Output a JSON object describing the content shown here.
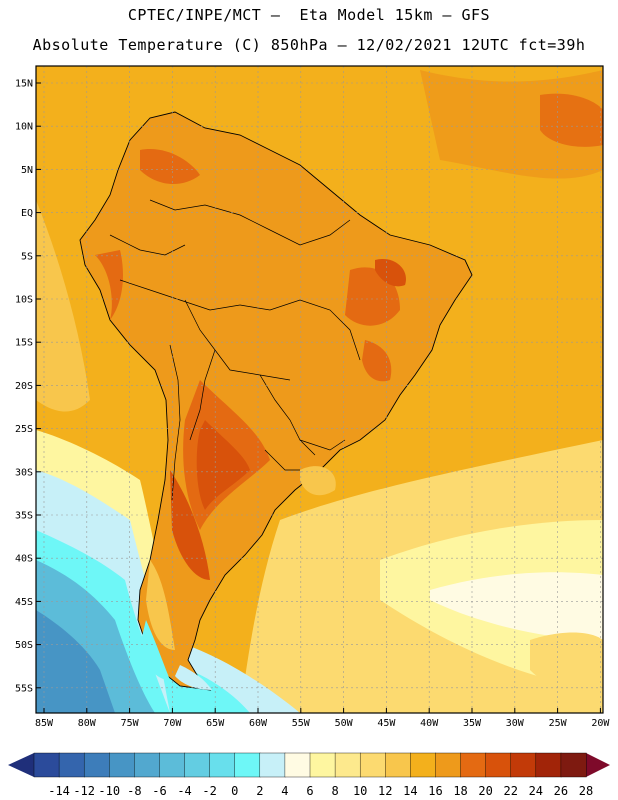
{
  "header": {
    "title_line1": "CPTEC/INPE/MCT –  Eta Model 15km – GFS",
    "title_line2": "Absolute Temperature (C) 850hPa – 12/02/2021 12UTC fct=39h"
  },
  "axes": {
    "lat_labels": [
      "15N",
      "10N",
      "5N",
      "EQ",
      "5S",
      "10S",
      "15S",
      "20S",
      "25S",
      "30S",
      "35S",
      "40S",
      "45S",
      "50S",
      "55S"
    ],
    "lon_labels": [
      "85W",
      "80W",
      "75W",
      "70W",
      "65W",
      "60W",
      "55W",
      "50W",
      "45W",
      "40W",
      "35W",
      "30W",
      "25W",
      "20W"
    ]
  },
  "colorbar": {
    "labels": [
      "-14",
      "-12",
      "-10",
      "-8",
      "-6",
      "-4",
      "-2",
      "0",
      "2",
      "4",
      "6",
      "8",
      "10",
      "12",
      "14",
      "16",
      "18",
      "20",
      "22",
      "24",
      "26",
      "28"
    ],
    "colors": [
      "#2b4b9b",
      "#3465ad",
      "#3d7dba",
      "#4795c5",
      "#52a8cf",
      "#5cbcd9",
      "#63cde2",
      "#68dfec",
      "#6ef7f7",
      "#c7f0f8",
      "#fffbe3",
      "#fef6a0",
      "#fde98d",
      "#fcda70",
      "#f8c64c",
      "#f3b01c",
      "#ee9a1b",
      "#e46a12",
      "#d8520b",
      "#c23a08",
      "#a12408",
      "#7e1a10"
    ],
    "arrow_left_color": "#1f2f7a",
    "arrow_right_color": "#7e0a2a"
  },
  "palette": {
    "ocean_warm": "#f1b22a",
    "ocean_mid": "#f7c94f",
    "ocean_cool": "#fde98d",
    "land_hot": "#e07a1a",
    "land_hotter": "#d35a10",
    "cold_south": "#5cbcd9",
    "cold_deep": "#3d7dba",
    "border_color": "#000000",
    "grid_color": "#999999"
  }
}
